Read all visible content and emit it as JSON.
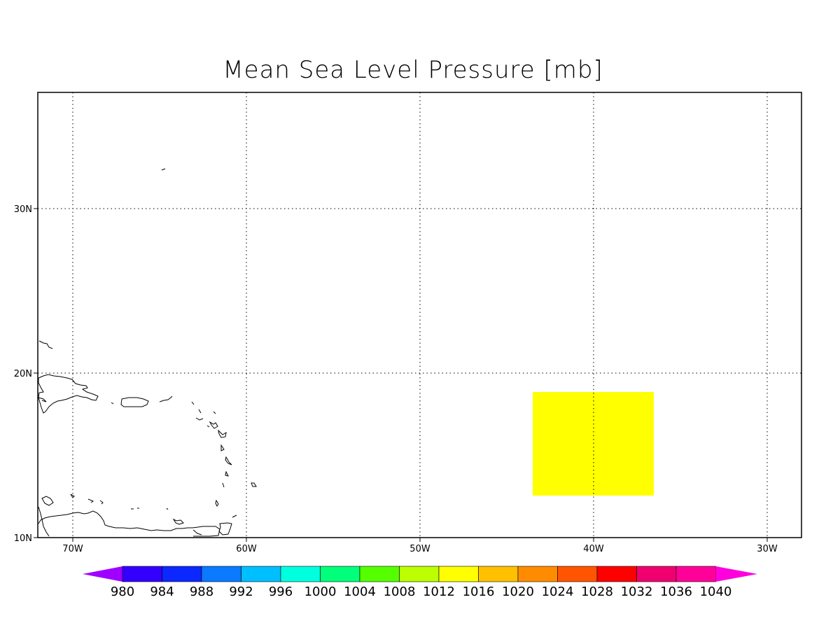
{
  "title": "Mean Sea Level Pressure [mb]",
  "map": {
    "lon_labels": [
      "70W",
      "60W",
      "50W",
      "40W",
      "30W"
    ],
    "lon_values": [
      -70,
      -60,
      -50,
      -40,
      -30
    ],
    "lat_labels": [
      "10N",
      "20N",
      "30N"
    ],
    "lat_values": [
      10,
      20,
      30
    ],
    "grid": "dotted",
    "field": {
      "description_value": 1014,
      "color": "#FFFF00"
    }
  },
  "colorbar": {
    "labels": [
      "980",
      "984",
      "988",
      "992",
      "996",
      "1000",
      "1004",
      "1008",
      "1012",
      "1016",
      "1020",
      "1024",
      "1028",
      "1032",
      "1036",
      "1040"
    ],
    "colors": [
      "#A000FF",
      "#3300FF",
      "#0A28FF",
      "#0A7AFF",
      "#00BFFF",
      "#00FFDF",
      "#00FF7A",
      "#55FF00",
      "#BBFF00",
      "#FFFF00",
      "#FFC000",
      "#FF8C00",
      "#FF5500",
      "#FF0000",
      "#F0006E",
      "#FF0099",
      "#FF00DD"
    ]
  }
}
